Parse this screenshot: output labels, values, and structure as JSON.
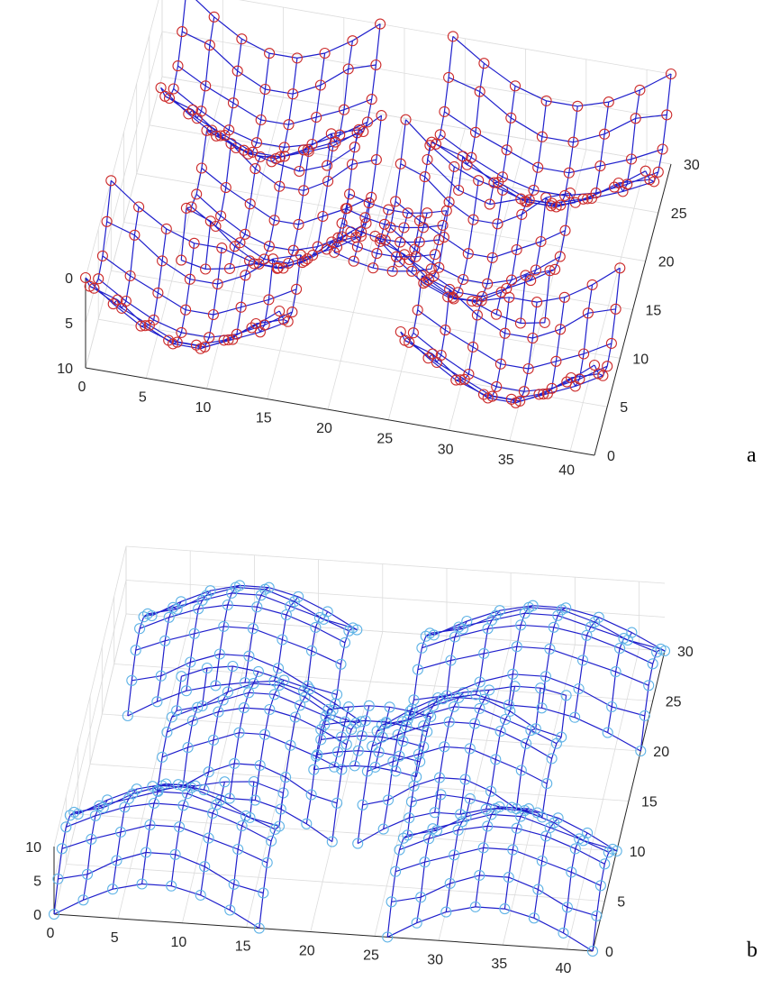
{
  "chart_data": [
    {
      "type": "3d-mesh",
      "panel_label": "a",
      "title": "",
      "xlabel": "",
      "ylabel": "",
      "zlabel": "",
      "xlim": [
        0,
        42
      ],
      "ylim": [
        0,
        30
      ],
      "zlim": [
        0,
        10
      ],
      "z_direction": "reversed",
      "x_ticks": [
        "0",
        "5",
        "10",
        "15",
        "20",
        "25",
        "30",
        "35",
        "40"
      ],
      "y_ticks": [
        "0",
        "5",
        "10",
        "15",
        "20",
        "25",
        "30"
      ],
      "z_ticks": [
        "0",
        "5",
        "10"
      ],
      "grid": true,
      "marker": "circle",
      "marker_color": "#cc2a2a",
      "line_color": "#1f1fcc",
      "domes": [
        {
          "x": [
            0,
            16
          ],
          "y": [
            0,
            10
          ],
          "height": 10
        },
        {
          "x": [
            6,
            20
          ],
          "y": [
            9,
            21
          ],
          "height": 10
        },
        {
          "x": [
            2,
            18
          ],
          "y": [
            20,
            30
          ],
          "height": 10
        },
        {
          "x": [
            26,
            42
          ],
          "y": [
            0,
            10
          ],
          "height": 10
        },
        {
          "x": [
            22,
            36
          ],
          "y": [
            9,
            21
          ],
          "height": 10
        },
        {
          "x": [
            24,
            42
          ],
          "y": [
            20,
            30
          ],
          "height": 10
        }
      ],
      "bridge": {
        "x": [
          18,
          26
        ],
        "y": [
          12,
          18
        ],
        "height": 7
      }
    },
    {
      "type": "3d-mesh",
      "panel_label": "b",
      "title": "",
      "xlabel": "",
      "ylabel": "",
      "zlabel": "",
      "xlim": [
        0,
        42
      ],
      "ylim": [
        0,
        30
      ],
      "zlim": [
        0,
        10
      ],
      "z_direction": "normal",
      "x_ticks": [
        "0",
        "5",
        "10",
        "15",
        "20",
        "25",
        "30",
        "35",
        "40"
      ],
      "y_ticks": [
        "0",
        "5",
        "10",
        "15",
        "20",
        "25",
        "30"
      ],
      "z_ticks": [
        "0",
        "5",
        "10"
      ],
      "grid": true,
      "marker": "circle",
      "marker_color": "#5fb3e6",
      "line_color": "#1f1fcc",
      "domes": [
        {
          "x": [
            0,
            16
          ],
          "y": [
            0,
            10
          ],
          "height": 10
        },
        {
          "x": [
            6,
            20
          ],
          "y": [
            9,
            21
          ],
          "height": 10
        },
        {
          "x": [
            2,
            18
          ],
          "y": [
            20,
            30
          ],
          "height": 10
        },
        {
          "x": [
            26,
            42
          ],
          "y": [
            0,
            10
          ],
          "height": 10
        },
        {
          "x": [
            22,
            36
          ],
          "y": [
            9,
            21
          ],
          "height": 10
        },
        {
          "x": [
            24,
            42
          ],
          "y": [
            20,
            30
          ],
          "height": 10
        }
      ],
      "bridge": {
        "x": [
          18,
          26
        ],
        "y": [
          12,
          18
        ],
        "height": 7
      }
    }
  ]
}
